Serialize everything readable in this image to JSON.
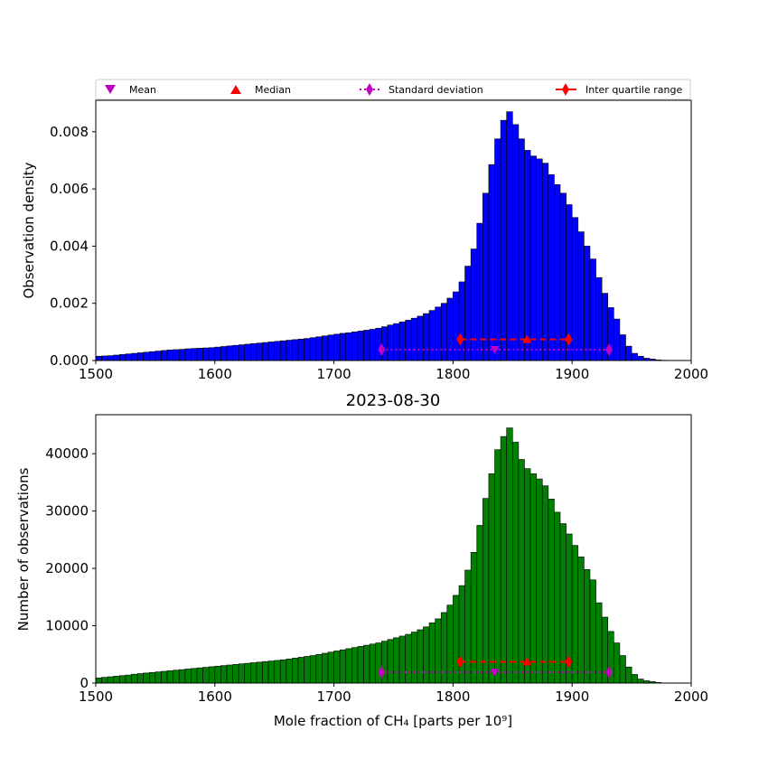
{
  "legend": {
    "entries": [
      {
        "label": "Mean",
        "marker": "triangle-down",
        "color": "#bf00bf"
      },
      {
        "label": "Median",
        "marker": "triangle-up",
        "color": "#ff0000"
      },
      {
        "label": "Standard deviation",
        "marker": "diamond-dotted-line",
        "color": "#bf00bf"
      },
      {
        "label": "Inter quartile range",
        "marker": "diamond-solid-line",
        "color": "#ff0000"
      }
    ]
  },
  "chart_data": [
    {
      "type": "bar",
      "title": "",
      "xlabel": "",
      "ylabel": "Observation density",
      "xlim": [
        1500,
        2000
      ],
      "ylim": [
        0,
        0.0091
      ],
      "xticks": [
        "1500",
        "1600",
        "1700",
        "1800",
        "1900",
        "2000"
      ],
      "yticks": [
        "0.000",
        "0.002",
        "0.004",
        "0.006",
        "0.008"
      ],
      "bar_color": "#0000ff",
      "bin_start": 1500,
      "bin_width": 5,
      "values": [
        0.00015,
        0.00016,
        0.00017,
        0.00019,
        0.00021,
        0.00023,
        0.00025,
        0.00027,
        0.00029,
        0.00031,
        0.00033,
        0.00035,
        0.00037,
        0.00038,
        0.00039,
        0.00041,
        0.00042,
        0.00043,
        0.00044,
        0.00045,
        0.00047,
        0.00049,
        0.00051,
        0.00053,
        0.00055,
        0.00057,
        0.00059,
        0.00061,
        0.00063,
        0.00065,
        0.00067,
        0.00069,
        0.00071,
        0.00073,
        0.00075,
        0.00077,
        0.0008,
        0.00083,
        0.00086,
        0.00089,
        0.00092,
        0.00095,
        0.00097,
        0.001,
        0.00103,
        0.00106,
        0.00109,
        0.00113,
        0.00118,
        0.00124,
        0.00129,
        0.00135,
        0.00141,
        0.00148,
        0.00155,
        0.00164,
        0.00175,
        0.00187,
        0.002,
        0.00218,
        0.0024,
        0.00275,
        0.0033,
        0.0039,
        0.0048,
        0.00585,
        0.00685,
        0.00775,
        0.0084,
        0.0087,
        0.00825,
        0.00775,
        0.00735,
        0.00715,
        0.00705,
        0.0069,
        0.0065,
        0.00615,
        0.00585,
        0.00545,
        0.005,
        0.0045,
        0.004,
        0.00355,
        0.0029,
        0.00235,
        0.00185,
        0.00145,
        0.0009,
        0.0005,
        0.00025,
        0.00015,
        8e-05,
        5e-05,
        2e-05,
        1e-05,
        0,
        0,
        0,
        0
      ],
      "stats": {
        "mean": {
          "x": 1835,
          "y": 0.00038
        },
        "median": {
          "x": 1862,
          "y": 0.00074
        },
        "std_range": [
          1740,
          1931
        ],
        "std_y": 0.00038,
        "iqr_range": [
          1806,
          1897
        ],
        "iqr_y": 0.00074
      }
    },
    {
      "type": "bar",
      "title": "2023-08-30",
      "xlabel": "Mole fraction of CH₄ [parts per 10⁹]",
      "ylabel": "Number of observations",
      "xlim": [
        1500,
        2000
      ],
      "ylim": [
        0,
        46800
      ],
      "xticks": [
        "1500",
        "1600",
        "1700",
        "1800",
        "1900",
        "2000"
      ],
      "yticks": [
        "0",
        "10000",
        "20000",
        "30000",
        "40000"
      ],
      "bar_color": "#008000",
      "bin_start": 1500,
      "bin_width": 5,
      "values": [
        900,
        1000,
        1100,
        1200,
        1300,
        1400,
        1550,
        1650,
        1750,
        1850,
        1950,
        2050,
        2150,
        2250,
        2350,
        2450,
        2550,
        2650,
        2750,
        2850,
        2950,
        3050,
        3150,
        3250,
        3350,
        3450,
        3550,
        3650,
        3750,
        3850,
        3950,
        4050,
        4200,
        4350,
        4500,
        4650,
        4800,
        5000,
        5200,
        5400,
        5600,
        5800,
        6000,
        6200,
        6400,
        6600,
        6800,
        7000,
        7300,
        7600,
        7900,
        8200,
        8500,
        8900,
        9300,
        9800,
        10500,
        11200,
        12300,
        13600,
        15300,
        17000,
        19700,
        22800,
        27500,
        32200,
        36500,
        40700,
        43000,
        44500,
        42000,
        39000,
        37400,
        36500,
        35600,
        34400,
        32100,
        29800,
        27800,
        26000,
        24000,
        22000,
        19800,
        18000,
        14000,
        11500,
        9000,
        7000,
        4800,
        2800,
        1500,
        700,
        400,
        250,
        100,
        0,
        0,
        0,
        0,
        0
      ],
      "stats": {
        "mean": {
          "x": 1835,
          "y": 1900
        },
        "median": {
          "x": 1862,
          "y": 3700
        },
        "std_range": [
          1740,
          1931
        ],
        "std_y": 1900,
        "iqr_range": [
          1806,
          1897
        ],
        "iqr_y": 3700
      }
    }
  ]
}
